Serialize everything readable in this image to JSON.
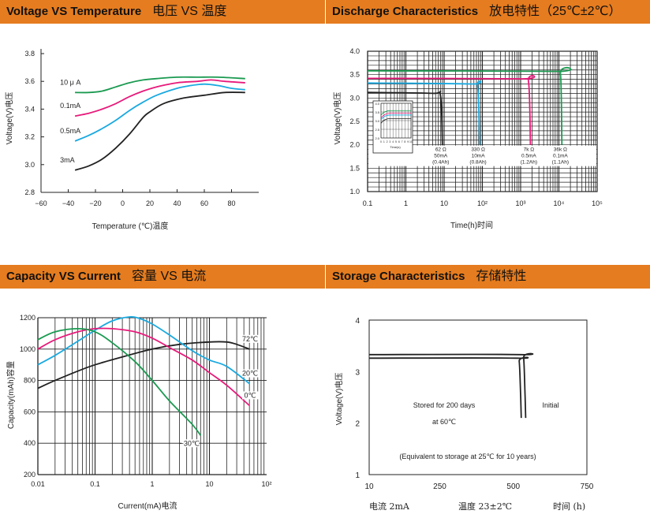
{
  "colors": {
    "header_bg": "#e57c1f",
    "green": "#1a9a50",
    "pink": "#e8197a",
    "cyan": "#19a9e0",
    "black": "#222222"
  },
  "panels": {
    "voltage_temp": {
      "title": "Voltage VS Temperature",
      "title_cn": "电压 VS 温度"
    },
    "discharge": {
      "title": "Discharge Characteristics",
      "title_cn": "放电特性（25℃±2℃）"
    },
    "capacity_current": {
      "title": "Capacity VS Current",
      "title_cn": "容量 VS 电流"
    },
    "storage": {
      "title": "Storage Characteristics",
      "title_cn": "存储特性"
    }
  },
  "chart_data": [
    {
      "id": "voltage_temp",
      "type": "line",
      "xlabel": "Temperature (℃)温度",
      "ylabel": "Voltage(V)电压",
      "xlim": [
        -60,
        100
      ],
      "ylim": [
        2.8,
        3.8
      ],
      "xticks": [
        -60,
        -40,
        -20,
        0,
        20,
        40,
        60,
        80
      ],
      "yticks": [
        2.8,
        3.0,
        3.2,
        3.4,
        3.6,
        3.8
      ],
      "ytick_labels": [
        "2.8",
        "3.0",
        "3.2",
        "3.4",
        "3.6",
        "3.8"
      ],
      "series": [
        {
          "name": "10 μ A",
          "color": "#1a9a50",
          "x": [
            -35,
            -25,
            -15,
            -5,
            5,
            15,
            25,
            40,
            55,
            70,
            90
          ],
          "y": [
            3.52,
            3.52,
            3.53,
            3.56,
            3.59,
            3.61,
            3.62,
            3.63,
            3.63,
            3.63,
            3.62
          ]
        },
        {
          "name": "0.1mA",
          "color": "#e8197a",
          "x": [
            -35,
            -25,
            -15,
            -5,
            5,
            15,
            25,
            40,
            55,
            65,
            75,
            90
          ],
          "y": [
            3.35,
            3.37,
            3.4,
            3.44,
            3.49,
            3.53,
            3.56,
            3.59,
            3.6,
            3.61,
            3.6,
            3.59
          ]
        },
        {
          "name": "0.5mA",
          "color": "#19a9e0",
          "x": [
            -35,
            -25,
            -15,
            -5,
            5,
            15,
            25,
            40,
            50,
            60,
            70,
            80,
            90
          ],
          "y": [
            3.17,
            3.21,
            3.26,
            3.32,
            3.39,
            3.45,
            3.5,
            3.55,
            3.57,
            3.58,
            3.57,
            3.55,
            3.54
          ]
        },
        {
          "name": "3mA",
          "color": "#222222",
          "x": [
            -35,
            -25,
            -15,
            -5,
            5,
            15,
            20,
            30,
            45,
            60,
            75,
            90
          ],
          "y": [
            2.96,
            2.99,
            3.04,
            3.12,
            3.22,
            3.34,
            3.38,
            3.44,
            3.48,
            3.5,
            3.52,
            3.52
          ]
        }
      ]
    },
    {
      "id": "discharge",
      "type": "line",
      "xlabel": "Time(h)时间",
      "ylabel": "Voltage(V)电压",
      "xscale": "log",
      "xlim": [
        0.1,
        100000
      ],
      "ylim": [
        1.0,
        4.0
      ],
      "xtick_labels": [
        "0.1",
        "1",
        "10",
        "10²",
        "10³",
        "10⁴",
        "10⁵"
      ],
      "yticks": [
        1.0,
        1.5,
        2.0,
        2.5,
        3.0,
        3.5,
        4.0
      ],
      "ytick_labels": [
        "1.0",
        "1.5",
        "2.0",
        "2.5",
        "3.0",
        "3.5",
        "4.0"
      ],
      "series": [
        {
          "name": "62 Ω 50mA (0.4Ah)",
          "color": "#222222",
          "x": [
            0.1,
            5,
            8,
            9
          ],
          "y": [
            3.12,
            3.1,
            3.05,
            2.0
          ]
        },
        {
          "name": "330 Ω 10mA (0.8Ah)",
          "color": "#19a9e0",
          "x": [
            0.1,
            50,
            75,
            85
          ],
          "y": [
            3.32,
            3.3,
            3.25,
            2.0
          ]
        },
        {
          "name": "7k Ω 0.5mA (1.2Ah)",
          "color": "#e8197a",
          "x": [
            0.1,
            1000,
            1600,
            1800
          ],
          "y": [
            3.42,
            3.41,
            3.36,
            2.0
          ]
        },
        {
          "name": "36k Ω 0.1mA (1.1Ah)",
          "color": "#1a9a50",
          "x": [
            0.1,
            8000,
            11000,
            12000
          ],
          "y": [
            3.58,
            3.57,
            3.52,
            2.0
          ]
        }
      ],
      "annotations": [
        {
          "lines": [
            "62 Ω",
            "50mA",
            "(0.4Ah)"
          ]
        },
        {
          "lines": [
            "330 Ω",
            "10mA",
            "(0.8Ah)"
          ]
        },
        {
          "lines": [
            "7k Ω",
            "0.5mA",
            "(1.2Ah)"
          ]
        },
        {
          "lines": [
            "36k Ω",
            "0.1mA",
            "(1.1Ah)"
          ]
        }
      ],
      "inset": {
        "xlabel": "Time(s)",
        "xticks": [
          "0",
          "1",
          "2",
          "3",
          "4",
          "5",
          "6",
          "7",
          "8",
          "9",
          "10"
        ],
        "yticks": [
          "2.0",
          "2.5",
          "3.0",
          "3.5",
          "4.0"
        ]
      }
    },
    {
      "id": "capacity_current",
      "type": "line",
      "xlabel": "Current(mA)电流",
      "ylabel": "Capacity(mAh)容量",
      "xscale": "log",
      "xlim": [
        0.01,
        100
      ],
      "ylim": [
        200,
        1200
      ],
      "xtick_labels": [
        "0.01",
        "0.1",
        "1",
        "10",
        "10²"
      ],
      "yticks": [
        200,
        400,
        600,
        800,
        1000,
        1200
      ],
      "ytick_labels": [
        "200",
        "400",
        "600",
        "800",
        "1000",
        "1200"
      ],
      "series": [
        {
          "name": "72℃",
          "color": "#222222",
          "x": [
            0.01,
            0.02,
            0.05,
            0.1,
            0.3,
            1,
            3,
            10,
            20,
            30,
            50
          ],
          "y": [
            750,
            800,
            860,
            900,
            950,
            1000,
            1030,
            1045,
            1045,
            1030,
            1000
          ]
        },
        {
          "name": "20℃",
          "color": "#19a9e0",
          "x": [
            0.01,
            0.02,
            0.05,
            0.1,
            0.2,
            0.4,
            0.6,
            1,
            2,
            5,
            10,
            20,
            50
          ],
          "y": [
            900,
            960,
            1050,
            1120,
            1180,
            1205,
            1195,
            1160,
            1090,
            990,
            930,
            890,
            780
          ]
        },
        {
          "name": "0℃",
          "color": "#e8197a",
          "x": [
            0.01,
            0.02,
            0.05,
            0.1,
            0.2,
            0.5,
            1,
            2,
            5,
            10,
            20,
            50
          ],
          "y": [
            1000,
            1060,
            1110,
            1130,
            1130,
            1110,
            1070,
            1010,
            930,
            850,
            770,
            640
          ]
        },
        {
          "name": "−30℃",
          "color": "#1a9a50",
          "x": [
            0.01,
            0.02,
            0.05,
            0.1,
            0.2,
            0.5,
            1,
            2,
            5,
            7
          ],
          "y": [
            1060,
            1110,
            1130,
            1110,
            1040,
            920,
            800,
            670,
            520,
            450
          ]
        }
      ]
    },
    {
      "id": "storage",
      "type": "line",
      "ylabel": "Voltage(V)电压",
      "xlim": [
        10,
        750
      ],
      "ylim": [
        1,
        4
      ],
      "xtick_labels": [
        "10",
        "250",
        "500",
        "750"
      ],
      "yticks": [
        1,
        2,
        3,
        4
      ],
      "ytick_labels": [
        "1",
        "2",
        "3",
        "4"
      ],
      "series": [
        {
          "name": "Stored for 200 days at 60℃",
          "color": "#222222",
          "x": [
            10,
            510,
            520,
            525,
            527
          ],
          "y": [
            3.26,
            3.26,
            3.2,
            2.5,
            2.1
          ]
        },
        {
          "name": "Initial",
          "color": "#222222",
          "x": [
            10,
            525,
            535,
            540,
            542
          ],
          "y": [
            3.33,
            3.33,
            3.27,
            2.5,
            2.1
          ]
        }
      ],
      "annotations": [
        "Stored for 200 days",
        "at 60℃",
        "Initial",
        "(Equivalent to storage at 25℃ for 10 years)"
      ],
      "footer": {
        "current": "电流  2mA",
        "temperature": "温度  23±2℃",
        "time": "时间 (h)"
      }
    }
  ]
}
